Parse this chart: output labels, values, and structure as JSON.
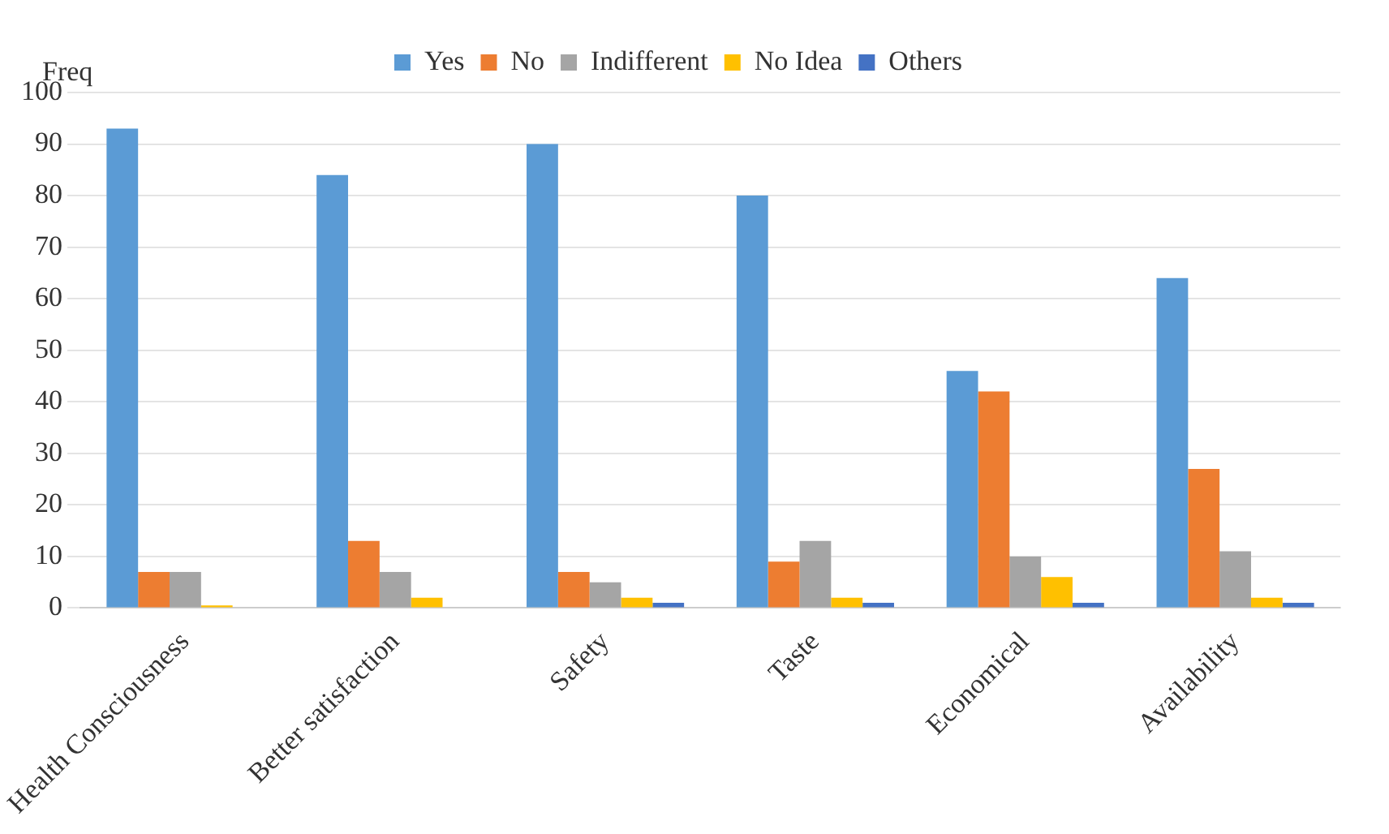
{
  "chart_data": {
    "type": "bar",
    "ylabel": "Freq",
    "categories": [
      "Health Consciousness",
      "Better satisfaction",
      "Safety",
      "Taste",
      "Economical",
      "Availability"
    ],
    "series": [
      {
        "name": "Yes",
        "color": "#5b9bd5",
        "values": [
          93,
          84,
          90,
          80,
          46,
          64
        ]
      },
      {
        "name": "No",
        "color": "#ed7d31",
        "values": [
          7,
          13,
          7,
          9,
          42,
          27
        ]
      },
      {
        "name": "Indifferent",
        "color": "#a5a5a5",
        "values": [
          7,
          7,
          5,
          13,
          10,
          11
        ]
      },
      {
        "name": "No Idea",
        "color": "#ffc000",
        "values": [
          0.5,
          2,
          2,
          2,
          6,
          2
        ]
      },
      {
        "name": "Others",
        "color": "#4472c4",
        "values": [
          0,
          0,
          1,
          1,
          1,
          1
        ]
      }
    ],
    "ylim": [
      0,
      100
    ],
    "yticks": [
      0,
      10,
      20,
      30,
      40,
      50,
      60,
      70,
      80,
      90,
      100
    ],
    "grid": "y",
    "legend": "top"
  }
}
